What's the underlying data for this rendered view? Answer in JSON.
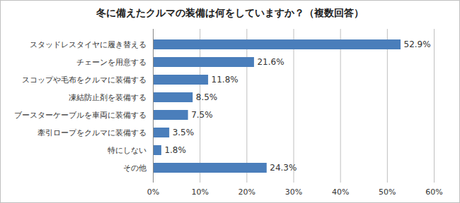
{
  "chart_data": {
    "type": "bar",
    "orientation": "horizontal",
    "title": "冬に備えたクルマの装備は何をしていますか？（複数回答）",
    "categories": [
      "スタッドレスタイヤに履き替える",
      "チェーンを用意する",
      "スコップや毛布をクルマに装備する",
      "凍結防止剤を装備する",
      "ブースターケーブルを車両に装備する",
      "牽引ロープをクルマに装備する",
      "特にしない",
      "その他"
    ],
    "values": [
      52.9,
      21.6,
      11.8,
      8.5,
      7.5,
      3.5,
      1.8,
      24.3
    ],
    "value_labels": [
      "52.9%",
      "21.6%",
      "11.8%",
      "8.5%",
      "7.5%",
      "3.5%",
      "1.8%",
      "24.3%"
    ],
    "data_labels": true,
    "color": "#4a7ebb",
    "xlim": [
      0,
      60
    ],
    "xticks": [
      {
        "value": 0,
        "label": "0%"
      },
      {
        "value": 10,
        "label": "10%"
      },
      {
        "value": 20,
        "label": "20%"
      },
      {
        "value": 30,
        "label": "30%"
      },
      {
        "value": 40,
        "label": "40%"
      },
      {
        "value": 50,
        "label": "50%"
      },
      {
        "value": 60,
        "label": "60%"
      }
    ],
    "grid": true
  }
}
